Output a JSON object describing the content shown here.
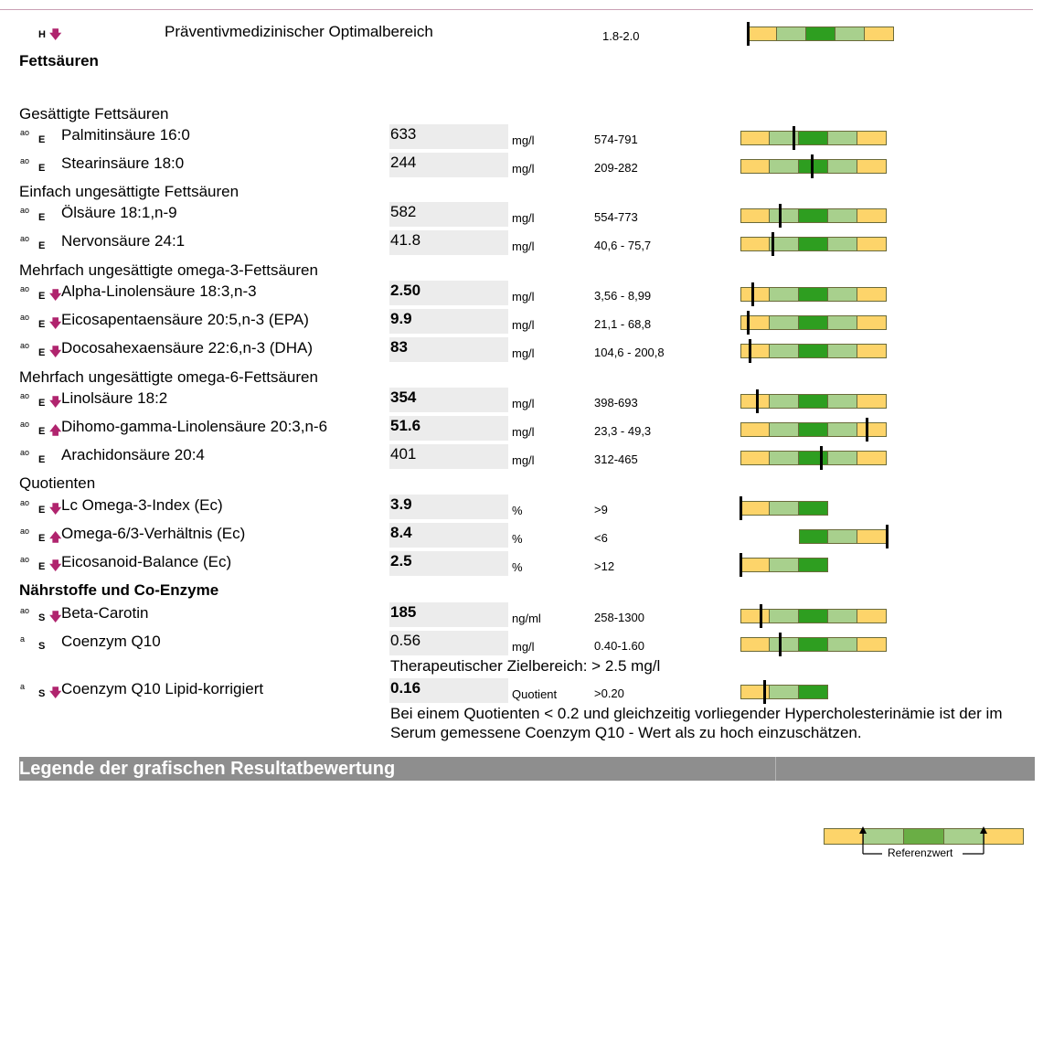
{
  "top_row": {
    "flag": "H",
    "direction": "down",
    "label": "Präventivmedizinischer Optimalbereich",
    "reference": "1.8-2.0",
    "position": 0.0
  },
  "section_title": "Fettsäuren",
  "groups": [
    {
      "title": "Gesättigte Fettsäuren"
    },
    {
      "title": "Einfach ungesättigte Fettsäuren"
    },
    {
      "title": "Mehrfach ungesättigte omega-3-Fettsäuren"
    },
    {
      "title": "Mehrfach ungesättigte omega-6-Fettsäuren"
    },
    {
      "title": "Quotienten"
    },
    {
      "title": "Nährstoffe und Co-Enzyme"
    }
  ],
  "rows": [
    {
      "flag": "ao",
      "src": "E",
      "direction": "",
      "name": "Palmitinsäure 16:0",
      "value": "633",
      "bold": false,
      "unit": "mg/l",
      "reference": "574-791",
      "scale": "full",
      "position": 0.36
    },
    {
      "flag": "ao",
      "src": "E",
      "direction": "",
      "name": "Stearinsäure 18:0",
      "value": "244",
      "bold": false,
      "unit": "mg/l",
      "reference": "209-282",
      "scale": "full",
      "position": 0.49
    },
    {
      "flag": "ao",
      "src": "E",
      "direction": "",
      "name": "Ölsäure 18:1,n-9",
      "value": "582",
      "bold": false,
      "unit": "mg/l",
      "reference": "554-773",
      "scale": "full",
      "position": 0.27
    },
    {
      "flag": "ao",
      "src": "E",
      "direction": "",
      "name": "Nervonsäure 24:1",
      "value": "41.8",
      "bold": false,
      "unit": "mg/l",
      "reference": "40,6 - 75,7",
      "scale": "full",
      "position": 0.22
    },
    {
      "flag": "ao",
      "src": "E",
      "direction": "down",
      "name": "Alpha-Linolensäure 18:3,n-3",
      "value": "2.50",
      "bold": true,
      "unit": "mg/l",
      "reference": "3,56 - 8,99",
      "scale": "full",
      "position": 0.08
    },
    {
      "flag": "ao",
      "src": "E",
      "direction": "down",
      "name": "Eicosapentaensäure 20:5,n-3 (EPA)",
      "value": "9.9",
      "bold": true,
      "unit": "mg/l",
      "reference": "21,1 - 68,8",
      "scale": "full",
      "position": 0.05
    },
    {
      "flag": "ao",
      "src": "E",
      "direction": "down",
      "name": "Docosahexaensäure 22:6,n-3 (DHA)",
      "value": "83",
      "bold": true,
      "unit": "mg/l",
      "reference": "104,6 - 200,8",
      "scale": "full",
      "position": 0.06
    },
    {
      "flag": "ao",
      "src": "E",
      "direction": "down",
      "name": "Linolsäure 18:2",
      "value": "354",
      "bold": true,
      "unit": "mg/l",
      "reference": "398-693",
      "scale": "full",
      "position": 0.11
    },
    {
      "flag": "ao",
      "src": "E",
      "direction": "up",
      "name": "Dihomo-gamma-Linolensäure 20:3,n-6",
      "value": "51.6",
      "bold": true,
      "unit": "mg/l",
      "reference": "23,3 - 49,3",
      "scale": "full",
      "position": 0.86
    },
    {
      "flag": "ao",
      "src": "E",
      "direction": "",
      "name": "Arachidonsäure 20:4",
      "value": "401",
      "bold": false,
      "unit": "mg/l",
      "reference": "312-465",
      "scale": "full",
      "position": 0.55
    },
    {
      "flag": "ao",
      "src": "E",
      "direction": "down",
      "name": "Lc Omega-3-Index (Ec)",
      "value": "3.9",
      "bold": true,
      "unit": "%",
      "reference": ">9",
      "scale": "low",
      "position": 0.0
    },
    {
      "flag": "ao",
      "src": "E",
      "direction": "up",
      "name": "Omega-6/3-Verhältnis  (Ec)",
      "value": "8.4",
      "bold": true,
      "unit": "%",
      "reference": "<6",
      "scale": "high",
      "position": 1.0
    },
    {
      "flag": "ao",
      "src": "E",
      "direction": "down",
      "name": "Eicosanoid-Balance (Ec)",
      "value": "2.5",
      "bold": true,
      "unit": "%",
      "reference": ">12",
      "scale": "low",
      "position": 0.0
    },
    {
      "flag": "ao",
      "src": "S",
      "direction": "down",
      "name": "Beta-Carotin",
      "value": "185",
      "bold": true,
      "unit": "ng/ml",
      "reference": "258-1300",
      "scale": "full",
      "position": 0.14
    },
    {
      "flag": "a",
      "src": "S",
      "direction": "",
      "name": "Coenzym Q10",
      "value": "0.56",
      "bold": false,
      "unit": "mg/l",
      "reference": "0.40-1.60",
      "scale": "full",
      "position": 0.27
    },
    {
      "flag": "a",
      "src": "S",
      "direction": "down",
      "name": "Coenzym Q10 Lipid-korrigiert",
      "value": "0.16",
      "bold": true,
      "unit": "Quotient",
      "reference": ">0.20",
      "scale": "low",
      "position": 0.27
    }
  ],
  "notes": {
    "q10_target": "Therapeutischer Zielbereich: > 2.5 mg/l",
    "q10_lipid_line1": "Bei einem Quotienten < 0.2 und gleichzeitig vorliegender Hypercholesterinämie ist der im",
    "q10_lipid_line2": "Serum gemessene Coenzym Q10 - Wert als zu hoch einzuschätzen."
  },
  "legend": {
    "title": "Legende der grafischen Resultatbewertung",
    "label": "Referenzwert"
  },
  "colors": {
    "yellow": "#fdd46a",
    "light_green": "#a8d08d",
    "dark_green": "#2e9e20",
    "arrow": "#b0246e",
    "legend_bar": "#8e8e8e"
  }
}
